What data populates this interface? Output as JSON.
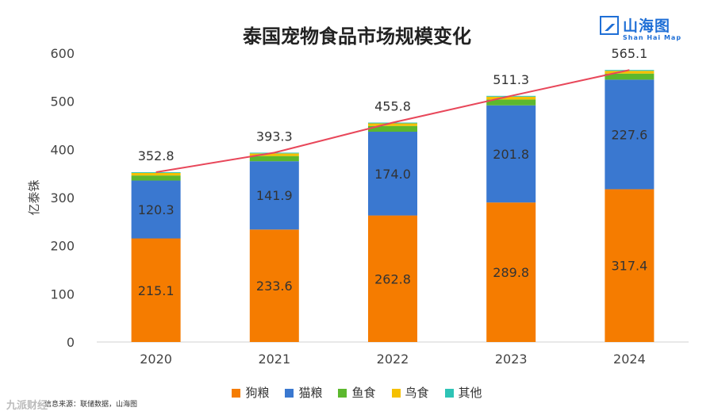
{
  "chart_data": {
    "type": "bar",
    "stacked": true,
    "title": "泰国宠物食品市场规模变化",
    "ylabel": "亿泰铢",
    "xlabel": "",
    "categories": [
      "2020",
      "2021",
      "2022",
      "2023",
      "2024"
    ],
    "ylim": [
      0,
      600
    ],
    "yticks": [
      0,
      100,
      200,
      300,
      400,
      500,
      600
    ],
    "series": [
      {
        "name": "狗粮",
        "color": "#f57c00",
        "values": [
          215.1,
          233.6,
          262.8,
          289.8,
          317.4
        ],
        "labels": [
          "215.1",
          "233.6",
          "262.8",
          "289.8",
          "317.4"
        ]
      },
      {
        "name": "猫粮",
        "color": "#3a78d0",
        "values": [
          120.3,
          141.9,
          174.0,
          201.8,
          227.6
        ],
        "labels": [
          "120.3",
          "141.9",
          "174.0",
          "201.8",
          "227.6"
        ]
      },
      {
        "name": "鱼食",
        "color": "#5cb82e",
        "values": [
          10.5,
          10.8,
          12.0,
          12.2,
          12.6
        ]
      },
      {
        "name": "鸟食",
        "color": "#f5c000",
        "values": [
          5.3,
          5.4,
          5.3,
          5.8,
          5.7
        ]
      },
      {
        "name": "其他",
        "color": "#2ec4b6",
        "values": [
          1.6,
          1.6,
          1.7,
          1.7,
          1.8
        ]
      }
    ],
    "totals": [
      352.8,
      393.3,
      455.8,
      511.3,
      565.1
    ],
    "total_labels": [
      "352.8",
      "393.3",
      "455.8",
      "511.3",
      "565.1"
    ],
    "trend_line_color": "#e8475a",
    "grid": false,
    "legend_position": "bottom"
  },
  "logo": {
    "cn": "山海图",
    "en": "Shan Hai Map"
  },
  "source": "信息来源：联储数据，山海图",
  "watermark": "九派财经"
}
